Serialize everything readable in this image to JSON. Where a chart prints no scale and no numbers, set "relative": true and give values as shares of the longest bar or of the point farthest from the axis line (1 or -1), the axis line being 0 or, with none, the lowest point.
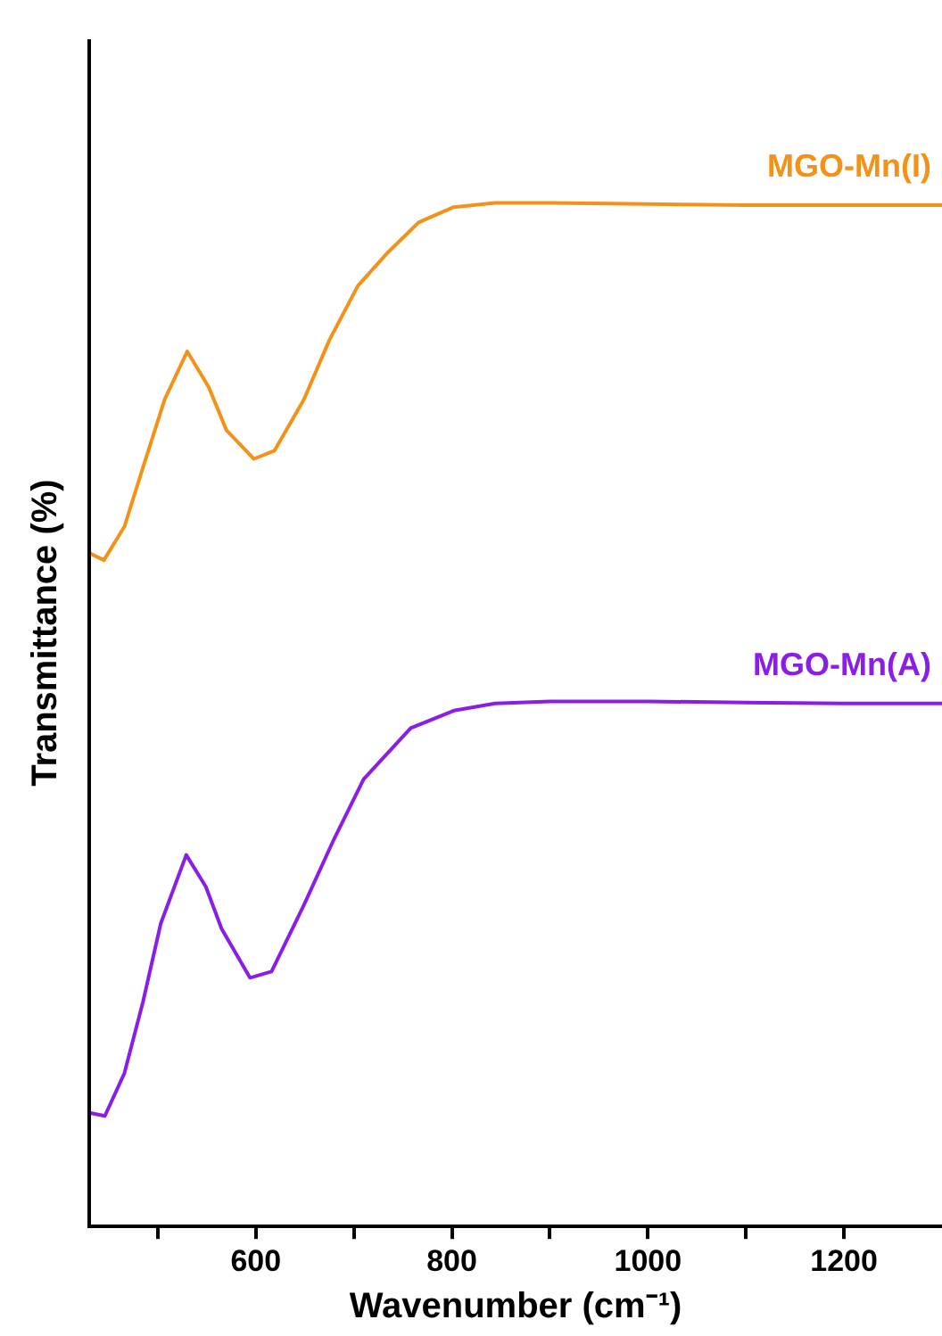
{
  "chart_data": {
    "type": "line",
    "xlabel": "Wavenumber (cm⁻¹)",
    "ylabel": "Transmittance (%)",
    "relative": true,
    "marker": "none",
    "grid": false,
    "xlim": [
      430,
      1300
    ],
    "xticks": [
      {
        "value": 500,
        "label": null
      },
      600,
      {
        "value": 700,
        "label": null
      },
      800,
      {
        "value": 900,
        "label": null
      },
      1000,
      {
        "value": 1100,
        "label": null
      },
      1200
    ],
    "series": [
      {
        "name": "MGO-Mn(I)",
        "color": "#f39219",
        "x": [
          430,
          445,
          466,
          485,
          507,
          530,
          552,
          570,
          598,
          619,
          649,
          675,
          704,
          735,
          766,
          802,
          844,
          900,
          1000,
          1100,
          1200,
          1300
        ],
        "values": [
          0.658,
          0.651,
          0.684,
          0.742,
          0.808,
          0.855,
          0.82,
          0.778,
          0.75,
          0.758,
          0.808,
          0.866,
          0.919,
          0.952,
          0.981,
          0.996,
          1.0,
          1.0,
          0.999,
          0.998,
          0.998,
          0.998
        ]
      },
      {
        "name": "MGO-Mn(A)",
        "color": "#8b1ee6",
        "x": [
          430,
          446,
          466,
          485,
          503,
          529,
          549,
          565,
          594,
          616,
          649,
          680,
          710,
          758,
          802,
          844,
          900,
          1000,
          1100,
          1200,
          1300
        ],
        "values": [
          0.111,
          0.108,
          0.15,
          0.22,
          0.296,
          0.363,
          0.332,
          0.291,
          0.243,
          0.249,
          0.314,
          0.379,
          0.437,
          0.487,
          0.504,
          0.511,
          0.513,
          0.513,
          0.512,
          0.511,
          0.511
        ]
      }
    ]
  }
}
